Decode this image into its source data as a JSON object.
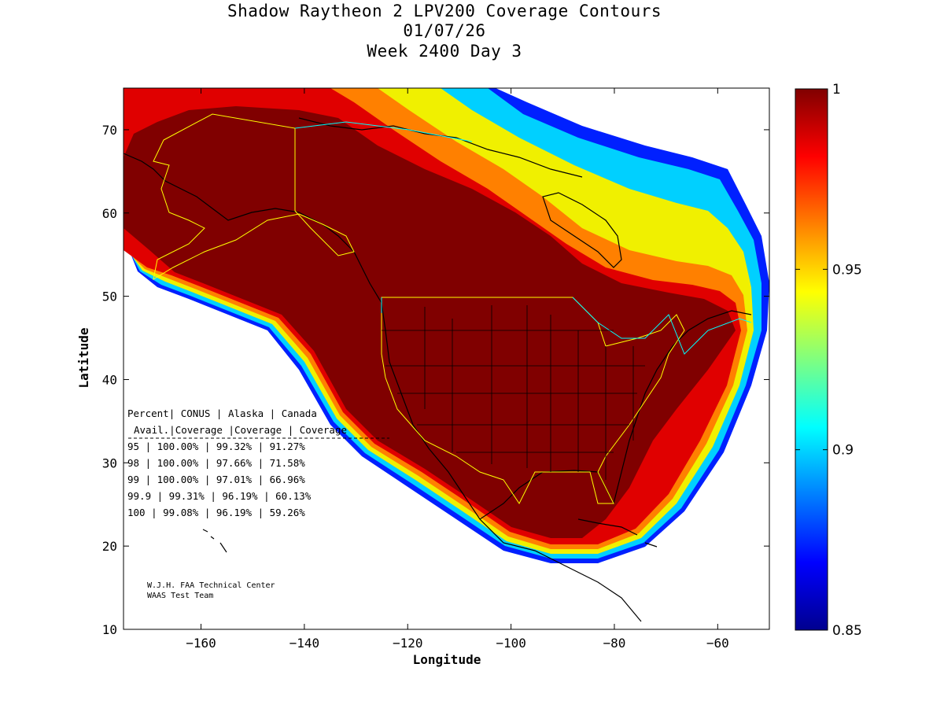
{
  "title": {
    "line1": "Shadow Raytheon 2 LPV200 Coverage Contours",
    "line2": "01/07/26",
    "line3": "Week 2400 Day 3"
  },
  "axes": {
    "xlabel": "Longitude",
    "ylabel": "Latitude",
    "xlim": [
      -175,
      -50
    ],
    "ylim": [
      10,
      75
    ],
    "xticks": [
      -160,
      -140,
      -120,
      -100,
      -80,
      -60
    ],
    "yticks": [
      10,
      20,
      30,
      40,
      50,
      60,
      70
    ]
  },
  "colorbar": {
    "range": [
      0.85,
      1
    ],
    "ticks": [
      "1",
      "0.95",
      "0.9",
      "0.85"
    ],
    "tick_values": [
      1,
      0.95,
      0.9,
      0.85
    ],
    "colormap": "jet"
  },
  "stats_table": {
    "header1": [
      "Percent",
      "CONUS",
      "Alaska",
      "Canada"
    ],
    "header2": [
      "Avail.",
      "Coverage",
      "Coverage",
      "Coverage"
    ],
    "rows": [
      [
        "95",
        "100.00%",
        "99.32%",
        "91.27%"
      ],
      [
        "98",
        "100.00%",
        "97.66%",
        "71.58%"
      ],
      [
        "99",
        "100.00%",
        "97.01%",
        "66.96%"
      ],
      [
        "99.9",
        "99.31%",
        "96.19%",
        "60.13%"
      ],
      [
        "100",
        "99.08%",
        "96.19%",
        "59.26%"
      ]
    ]
  },
  "credit": {
    "line1": "W.J.H. FAA Technical Center",
    "line2": "WAAS Test Team"
  },
  "colors": {
    "coverage_max": "#800000",
    "coverage_min": "#00008f",
    "coastline": "#000000",
    "us_boundary": "#ffff00",
    "canada_boundary": "#00ffff"
  }
}
